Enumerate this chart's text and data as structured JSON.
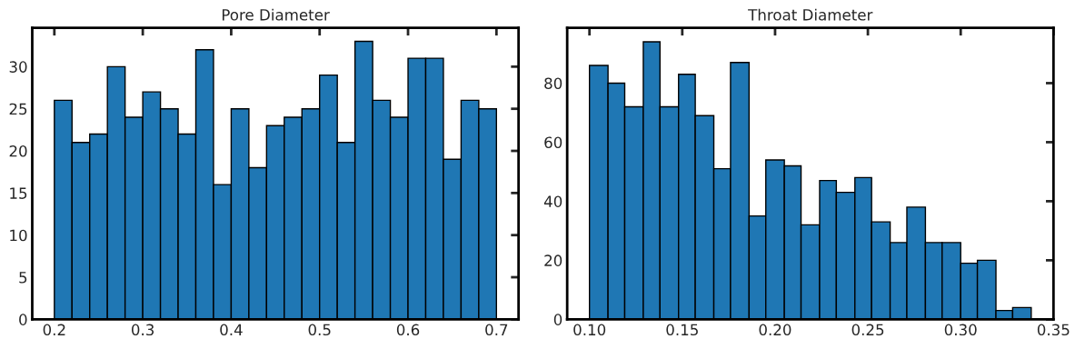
{
  "chart_data": [
    {
      "type": "histogram",
      "title": "Pore Diameter",
      "color": "#1f77b4",
      "bins": [
        0.2,
        0.22,
        0.24,
        0.26,
        0.28,
        0.3,
        0.32,
        0.34,
        0.36,
        0.38,
        0.4,
        0.42,
        0.44,
        0.46,
        0.48,
        0.5,
        0.52,
        0.54,
        0.56,
        0.58,
        0.6,
        0.62,
        0.64,
        0.66,
        0.68,
        0.7
      ],
      "values": [
        26,
        21,
        22,
        30,
        24,
        27,
        25,
        22,
        32,
        16,
        25,
        18,
        23,
        24,
        25,
        29,
        21,
        33,
        26,
        24,
        31,
        31,
        19,
        26,
        25
      ],
      "xlim": [
        0.175,
        0.725
      ],
      "ylim": [
        0,
        34.6
      ],
      "xticks": [
        {
          "value": 0.2,
          "label": "0.2"
        },
        {
          "value": 0.3,
          "label": "0.3"
        },
        {
          "value": 0.4,
          "label": "0.4"
        },
        {
          "value": 0.5,
          "label": "0.5"
        },
        {
          "value": 0.6,
          "label": "0.6"
        },
        {
          "value": 0.7,
          "label": "0.7"
        }
      ],
      "yticks": [
        0,
        5,
        10,
        15,
        20,
        25,
        30
      ],
      "grid": false
    },
    {
      "type": "histogram",
      "title": "Throat Diameter",
      "color": "#1f77b4",
      "bins": [
        0.1,
        0.11,
        0.119,
        0.129,
        0.138,
        0.148,
        0.157,
        0.167,
        0.176,
        0.186,
        0.195,
        0.205,
        0.214,
        0.224,
        0.233,
        0.243,
        0.252,
        0.262,
        0.271,
        0.281,
        0.29,
        0.3,
        0.309,
        0.319,
        0.328,
        0.338
      ],
      "values": [
        86,
        80,
        72,
        94,
        72,
        83,
        69,
        51,
        87,
        35,
        54,
        52,
        32,
        47,
        43,
        48,
        33,
        26,
        38,
        26,
        26,
        19,
        20,
        3,
        4
      ],
      "xlim": [
        0.088,
        0.35
      ],
      "ylim": [
        0,
        98.7
      ],
      "xticks": [
        {
          "value": 0.1,
          "label": "0.10"
        },
        {
          "value": 0.15,
          "label": "0.15"
        },
        {
          "value": 0.2,
          "label": "0.20"
        },
        {
          "value": 0.25,
          "label": "0.25"
        },
        {
          "value": 0.3,
          "label": "0.30"
        },
        {
          "value": 0.35,
          "label": "0.35"
        }
      ],
      "yticks": [
        0,
        20,
        40,
        60,
        80
      ],
      "grid": false
    }
  ]
}
